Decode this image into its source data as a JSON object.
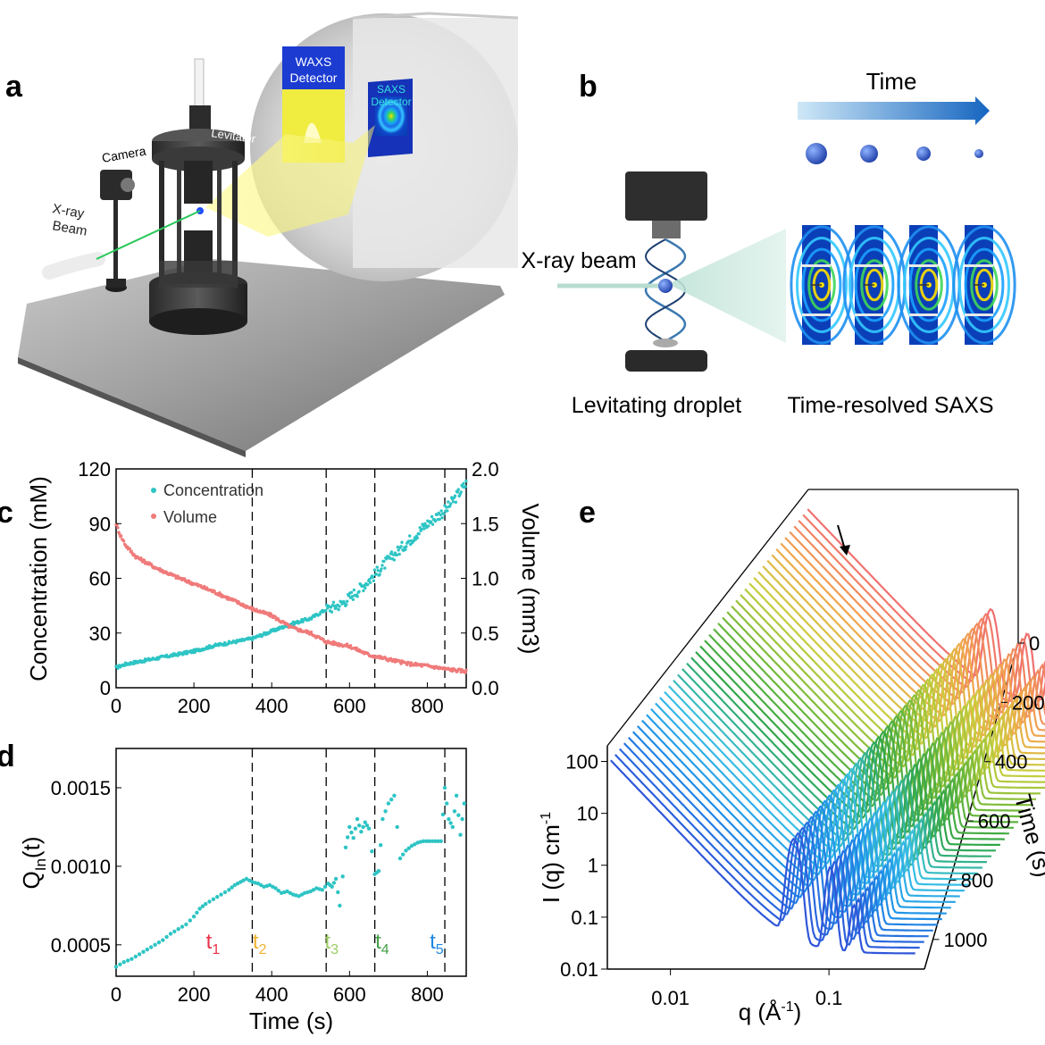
{
  "panel_labels": {
    "a": "a",
    "b": "b",
    "c": "c",
    "d": "d",
    "e": "e"
  },
  "panel_a": {
    "waxs_line1": "WAXS",
    "waxs_line2": "Detector",
    "saxs_line1": "SAXS",
    "saxs_line2": "Detector",
    "camera": "Camera",
    "levitator": "Levitator",
    "xray_line1": "X-ray",
    "xray_line2": "Beam"
  },
  "panel_b": {
    "time": "Time",
    "xray_beam": "X-ray beam",
    "levitating_droplet": "Levitating droplet",
    "time_resolved": "Time-resolved SAXS",
    "droplet_sizes": [
      12,
      10,
      8,
      5
    ]
  },
  "chart_data": [
    {
      "id": "c",
      "type": "scatter",
      "title": "",
      "xlabel": "",
      "ylabel": "Concentration (mM)",
      "y2label": "Volume (mm3)",
      "xlim": [
        0,
        900
      ],
      "ylim": [
        0,
        120
      ],
      "y2lim": [
        0,
        2.0
      ],
      "xticks": [
        "0",
        "200",
        "400",
        "600",
        "800"
      ],
      "yticks": [
        "0",
        "30",
        "60",
        "90",
        "120"
      ],
      "y2ticks": [
        "0.0",
        "0.5",
        "1.0",
        "1.5",
        "2.0"
      ],
      "legend_position": "top-left",
      "vlines": [
        350,
        540,
        665,
        845
      ],
      "series": [
        {
          "name": "Concentration",
          "color": "#2ec4c4",
          "axis": "left",
          "x": [
            0,
            25,
            50,
            100,
            150,
            200,
            250,
            300,
            350,
            400,
            450,
            500,
            540,
            580,
            620,
            665,
            700,
            750,
            800,
            850,
            900
          ],
          "y": [
            11,
            13,
            14,
            16,
            18,
            20,
            23,
            25,
            27,
            31,
            35,
            38,
            43,
            46,
            53,
            62,
            70,
            80,
            90,
            98,
            112
          ]
        },
        {
          "name": "Volume",
          "color": "#f07a7a",
          "axis": "right",
          "x": [
            0,
            10,
            25,
            50,
            75,
            100,
            150,
            200,
            250,
            300,
            350,
            400,
            450,
            500,
            540,
            600,
            650,
            700,
            750,
            800,
            850,
            900
          ],
          "y": [
            1.5,
            1.4,
            1.3,
            1.2,
            1.15,
            1.1,
            1.02,
            0.95,
            0.88,
            0.8,
            0.72,
            0.66,
            0.55,
            0.5,
            0.42,
            0.38,
            0.3,
            0.26,
            0.22,
            0.2,
            0.17,
            0.15
          ]
        }
      ]
    },
    {
      "id": "d",
      "type": "scatter",
      "title": "",
      "xlabel": "Time (s)",
      "ylabel": "Q",
      "ylabel_sub": "In",
      "ylabel_rest": "(t)",
      "xlim": [
        0,
        900
      ],
      "ylim": [
        0.0003,
        0.00175
      ],
      "xticks": [
        "0",
        "200",
        "400",
        "600",
        "800"
      ],
      "yticks": [
        "0.0005",
        "0.0010",
        "0.0015"
      ],
      "vlines": [
        350,
        540,
        665,
        845
      ],
      "stage_labels": [
        {
          "main": "t",
          "sub": "1",
          "x": 300,
          "color": "#e8334a"
        },
        {
          "main": "t",
          "sub": "2",
          "x": 420,
          "color": "#f2b233"
        },
        {
          "main": "t",
          "sub": "3",
          "x": 605,
          "color": "#9ccc65"
        },
        {
          "main": "t",
          "sub": "4",
          "x": 735,
          "color": "#43a047"
        },
        {
          "main": "t",
          "sub": "5",
          "x": 875,
          "color": "#1e88e5"
        }
      ],
      "series": [
        {
          "name": "Q_In(t)",
          "color": "#2ec4c4",
          "x": [
            0,
            20,
            40,
            60,
            80,
            100,
            120,
            140,
            160,
            180,
            200,
            215,
            230,
            250,
            270,
            290,
            305,
            320,
            335,
            350,
            365,
            380,
            395,
            410,
            425,
            440,
            455,
            470,
            485,
            500,
            515,
            530,
            545,
            555,
            565,
            575,
            590,
            600,
            610,
            620,
            630,
            640,
            650,
            665,
            675,
            685,
            700,
            715,
            730,
            745,
            760,
            775,
            790,
            805,
            820,
            835,
            845,
            855,
            865,
            875,
            885,
            895
          ],
          "y": [
            0.00036,
            0.00039,
            0.00041,
            0.00044,
            0.00047,
            0.0005,
            0.00053,
            0.00057,
            0.0006,
            0.00063,
            0.00068,
            0.00073,
            0.00076,
            0.00079,
            0.00082,
            0.00085,
            0.00088,
            0.0009,
            0.00092,
            0.0009,
            0.00089,
            0.00087,
            0.00088,
            0.00086,
            0.00083,
            0.00084,
            0.00082,
            0.00081,
            0.00083,
            0.00084,
            0.00086,
            0.00085,
            0.00089,
            0.00087,
            0.00092,
            0.00075,
            0.00112,
            0.00125,
            0.00118,
            0.0013,
            0.00122,
            0.00128,
            0.00124,
            0.00095,
            0.00097,
            0.0013,
            0.0014,
            0.00145,
            0.00105,
            0.0011,
            0.00113,
            0.00115,
            0.00116,
            0.00116,
            0.00116,
            0.00116,
            0.0015,
            0.0013,
            0.00125,
            0.00145,
            0.0012,
            0.0014
          ]
        }
      ]
    },
    {
      "id": "e",
      "type": "line",
      "title": "",
      "xlabel": "q (Å",
      "xlabel_sup": "-1",
      "xlabel_close": ")",
      "ylabel": "I (q) cm",
      "ylabel_sup": "-1",
      "zlabel": "Time (s)",
      "xscale": "log",
      "yscale": "log",
      "xlim": [
        0.004,
        0.4
      ],
      "ylim": [
        0.01,
        200
      ],
      "zlim": [
        0,
        1100
      ],
      "xticks": [
        "0.01",
        "0.1"
      ],
      "yticks": [
        "0.01",
        "0.1",
        "1",
        "10",
        "100"
      ],
      "zticks": [
        "0",
        "200",
        "400",
        "600",
        "800",
        "1000"
      ],
      "num_curves": 45,
      "color_stops": [
        "#2f56d9",
        "#1e90e8",
        "#3bc2e5",
        "#2fa64a",
        "#74b93a",
        "#c8cf3c",
        "#f0a84a",
        "#f07070"
      ]
    }
  ]
}
